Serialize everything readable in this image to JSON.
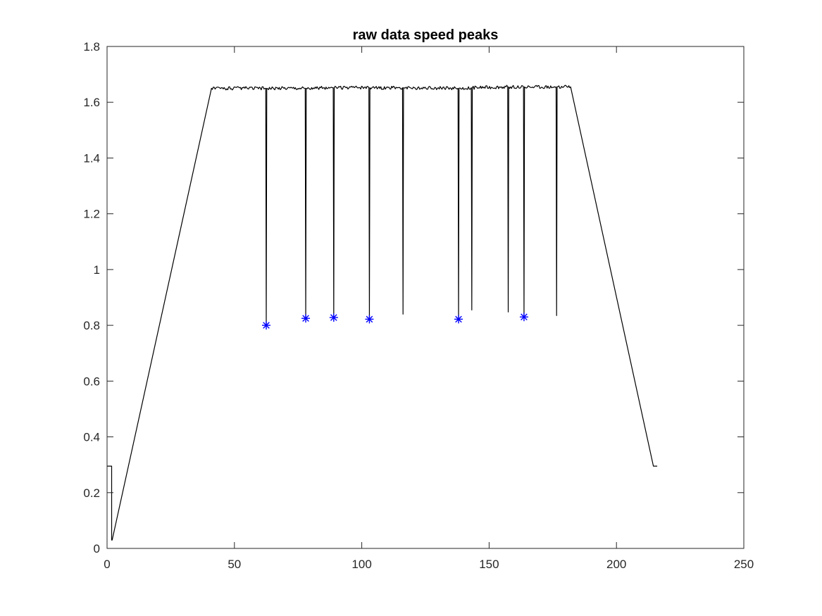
{
  "chart_data": {
    "type": "line",
    "title": "raw data speed peaks",
    "xlabel": "",
    "ylabel": "",
    "xlim": [
      0,
      250
    ],
    "ylim": [
      0,
      1.8
    ],
    "x_ticks": [
      0,
      50,
      100,
      150,
      200,
      250
    ],
    "x_tick_labels": [
      "0",
      "50",
      "100",
      "150",
      "200",
      "250"
    ],
    "y_ticks": [
      0,
      0.2,
      0.4,
      0.6,
      0.8,
      1.0,
      1.2,
      1.4,
      1.6,
      1.8
    ],
    "y_tick_labels": [
      "0",
      "0.2",
      "0.4",
      "0.6",
      "0.8",
      "1",
      "1.2",
      "1.4",
      "1.6",
      "1.8"
    ],
    "grid": false,
    "series": [
      {
        "kind": "line",
        "color": "#000000",
        "plateau_level": 1.65,
        "x": [
          0,
          1.8,
          1.8,
          2.0,
          41,
          62.3,
          62.5,
          62.7,
          77.8,
          78.0,
          78.2,
          88.8,
          89.0,
          89.2,
          102.8,
          103.0,
          103.2,
          116.0,
          116.2,
          116.4,
          137.8,
          138.0,
          138.2,
          143.0,
          143.2,
          143.4,
          157.3,
          157.5,
          157.7,
          163.5,
          163.7,
          163.9,
          176.3,
          176.5,
          176.7,
          182,
          214.5,
          216.0
        ],
        "y": [
          0.295,
          0.295,
          0.03,
          0.03,
          1.65,
          1.65,
          0.8,
          1.65,
          1.65,
          0.825,
          1.65,
          1.652,
          0.828,
          1.652,
          1.652,
          0.822,
          1.652,
          1.652,
          0.84,
          1.652,
          1.65,
          0.822,
          1.65,
          1.652,
          0.855,
          1.652,
          1.655,
          0.848,
          1.655,
          1.655,
          0.83,
          1.655,
          1.655,
          0.835,
          1.655,
          1.655,
          0.295,
          0.295
        ]
      },
      {
        "kind": "markers",
        "marker": "asterisk",
        "color": "#0000ff",
        "x": [
          62.5,
          78.0,
          89.0,
          103.0,
          138.0,
          163.7
        ],
        "y": [
          0.8,
          0.825,
          0.828,
          0.822,
          0.822,
          0.83
        ]
      }
    ]
  }
}
